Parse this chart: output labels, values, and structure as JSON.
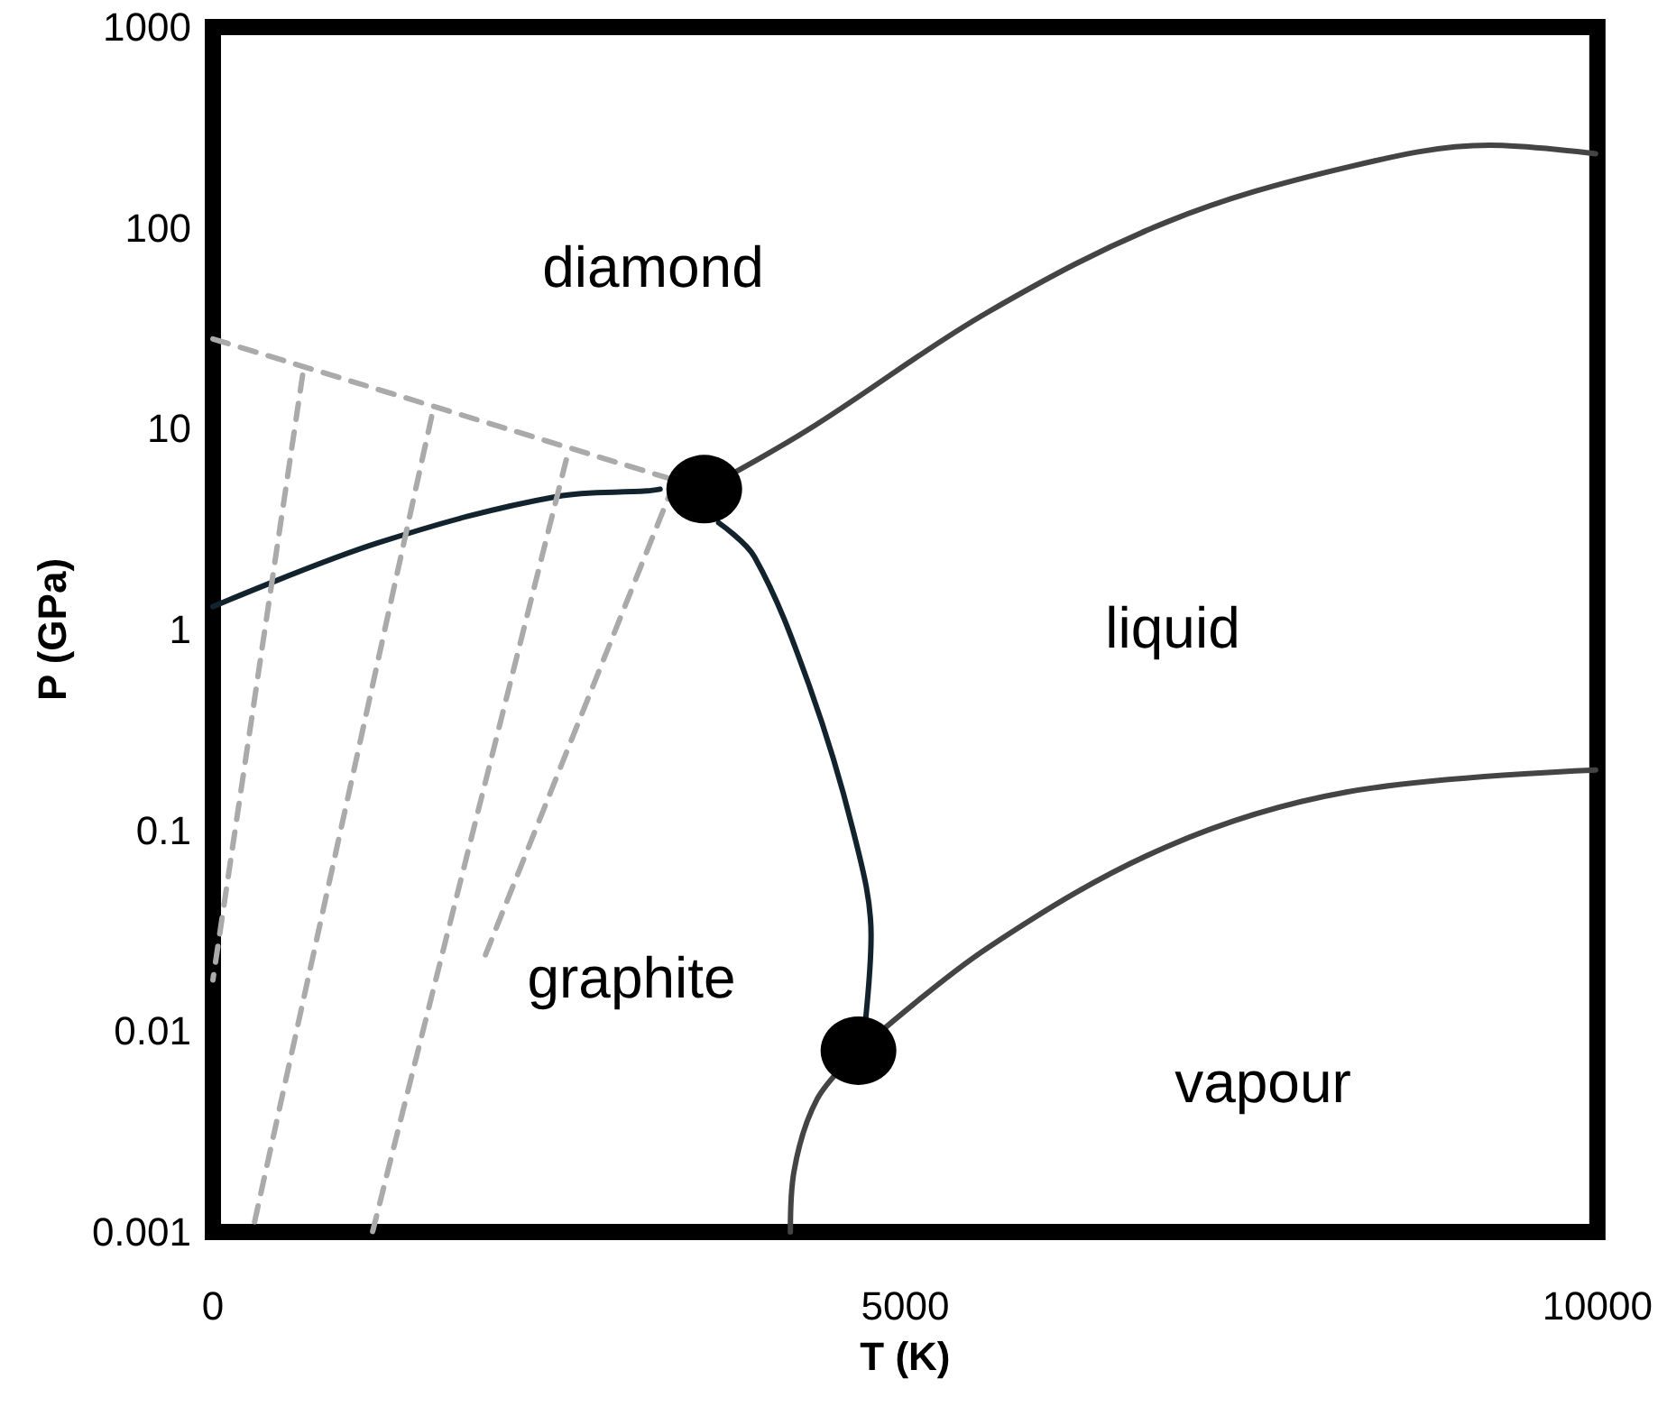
{
  "chart_data": {
    "type": "line",
    "xlabel": "T (K)",
    "ylabel": "P (GPa)",
    "log": "y",
    "xlim": [
      0,
      10000
    ],
    "xticks": [
      0,
      5000,
      10000
    ],
    "ylim": [
      0.001,
      1000
    ],
    "yticks": [
      0.001,
      0.01,
      0.1,
      1,
      10,
      100,
      1000
    ],
    "grid": false,
    "marker": "none",
    "line_style": "solid",
    "series": [
      {
        "color": "#12232e",
        "x": [
          0,
          1192,
          2487,
          3135,
          3230
        ],
        "values": [
          1.3,
          2.7,
          4.6,
          4.9,
          5.0
        ]
      },
      {
        "color": "#12232e",
        "x": [
          3653,
          3912,
          4301,
          4624,
          4754,
          4715
        ],
        "values": [
          3.4,
          2.3,
          0.54,
          0.1,
          0.03,
          0.0115
        ]
      },
      {
        "color": "#444444",
        "x": [
          3549,
          4301,
          5596,
          6891,
          8187,
          9223,
          9987
        ],
        "values": [
          5.0,
          9.9,
          38,
          107,
          200,
          258,
          234
        ]
      },
      {
        "color": "#444444",
        "x": [
          4663,
          5596,
          6891,
          8187,
          9987
        ],
        "values": [
          0.008,
          0.026,
          0.083,
          0.155,
          0.2
        ]
      },
      {
        "color": "#444444",
        "x": [
          4663,
          4365,
          4197,
          4171
        ],
        "values": [
          0.008,
          0.0046,
          0.002,
          0.001
        ]
      },
      {
        "color": "#aaaaaa",
        "line_style": "dashed",
        "x": [
          0,
          3280
        ],
        "values": [
          28,
          5.7
        ]
      },
      {
        "color": "#aaaaaa",
        "line_style": "dashed",
        "x": [
          648,
          0
        ],
        "values": [
          18.5,
          0.018
        ]
      },
      {
        "color": "#aaaaaa",
        "line_style": "dashed",
        "x": [
          1580,
          285
        ],
        "values": [
          11.5,
          0.001
        ]
      },
      {
        "color": "#aaaaaa",
        "line_style": "dashed",
        "x": [
          2552,
          1153
        ],
        "values": [
          7.0,
          0.001
        ]
      },
      {
        "color": "#aaaaaa",
        "line_style": "dashed",
        "x": [
          3329,
          1969
        ],
        "values": [
          5.3,
          0.024
        ]
      },
      {
        "type": "scatter",
        "marker": "circle",
        "color": "#000000",
        "x": [
          3549,
          4663
        ],
        "values": [
          5.0,
          0.008
        ]
      }
    ],
    "annotations": [
      "diamond",
      "liquid",
      "graphite",
      "vapour"
    ]
  }
}
